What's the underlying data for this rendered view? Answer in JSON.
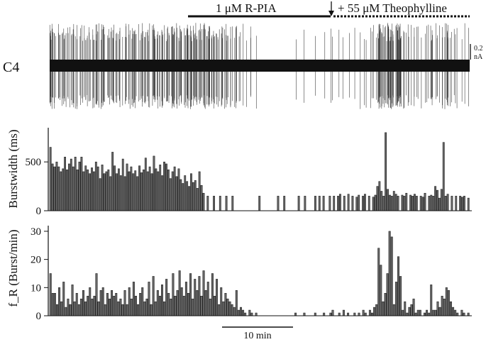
{
  "figure": {
    "trace_label": "C4",
    "drug1_label": "1 μM R-PIA",
    "drug2_label": "+ 55 μM Theophylline",
    "amp_scale_value": "0.2",
    "amp_scale_unit": "nA",
    "time_scale_label": "10 min",
    "colors": {
      "ink": "#111111",
      "bar_fill": "#666666",
      "trace": "#111111"
    }
  },
  "chart_data": [
    {
      "type": "bar",
      "ylabel": "Burstwidth (ms)",
      "yticks": [
        "0",
        "500"
      ],
      "ylim": [
        0,
        850
      ],
      "values": [
        650,
        480,
        450,
        500,
        450,
        400,
        430,
        550,
        420,
        480,
        530,
        450,
        550,
        420,
        500,
        550,
        400,
        460,
        420,
        380,
        440,
        400,
        500,
        450,
        330,
        470,
        380,
        400,
        420,
        350,
        600,
        460,
        380,
        430,
        360,
        530,
        350,
        480,
        400,
        450,
        380,
        410,
        350,
        460,
        390,
        420,
        540,
        400,
        450,
        380,
        560,
        430,
        400,
        470,
        360,
        500,
        480,
        420,
        330,
        400,
        450,
        350,
        430,
        320,
        280,
        360,
        300,
        250,
        380,
        290,
        310,
        230,
        400,
        260,
        180,
        0,
        150,
        0,
        0,
        150,
        0,
        0,
        150,
        0,
        0,
        150,
        0,
        0,
        150,
        0,
        0,
        0,
        0,
        0,
        0,
        0,
        0,
        0,
        0,
        0,
        0,
        150,
        0,
        0,
        0,
        0,
        0,
        0,
        0,
        0,
        150,
        0,
        0,
        150,
        0,
        0,
        0,
        0,
        0,
        0,
        150,
        0,
        0,
        150,
        0,
        0,
        0,
        0,
        150,
        0,
        150,
        0,
        150,
        0,
        0,
        150,
        0,
        150,
        0,
        150,
        170,
        0,
        150,
        0,
        170,
        0,
        150,
        0,
        140,
        160,
        0,
        150,
        170,
        0,
        150,
        0,
        140,
        160,
        250,
        300,
        200,
        150,
        800,
        220,
        160,
        150,
        200,
        170,
        150,
        0,
        160,
        150,
        180,
        0,
        160,
        150,
        170,
        150,
        0,
        150,
        140,
        180,
        0,
        150,
        160,
        150,
        250,
        210,
        130,
        220,
        700,
        150,
        170,
        0,
        150,
        0,
        150,
        0,
        150,
        140,
        150,
        0,
        130
      ]
    },
    {
      "type": "bar",
      "ylabel": "f_R (Burst/min)",
      "yticks": [
        "0",
        "10",
        "20",
        "30"
      ],
      "ylim": [
        0,
        32
      ],
      "values": [
        15,
        8,
        8,
        4,
        10,
        5,
        12,
        3,
        6,
        4,
        11,
        5,
        8,
        4,
        6,
        9,
        5,
        7,
        10,
        6,
        7,
        15,
        5,
        9,
        10,
        4,
        8,
        6,
        9,
        7,
        8,
        5,
        6,
        4,
        9,
        4,
        10,
        6,
        12,
        7,
        4,
        8,
        10,
        5,
        6,
        12,
        4,
        14,
        5,
        9,
        7,
        11,
        5,
        13,
        8,
        6,
        15,
        7,
        9,
        16,
        10,
        7,
        12,
        8,
        15,
        6,
        13,
        9,
        14,
        7,
        16,
        9,
        12,
        6,
        15,
        7,
        13,
        4,
        10,
        5,
        8,
        6,
        5,
        4,
        3,
        9,
        2,
        3,
        2,
        1,
        0,
        2,
        1,
        0,
        1,
        0,
        0,
        0,
        0,
        0,
        0,
        0,
        0,
        0,
        0,
        0,
        0,
        0,
        0,
        0,
        0,
        0,
        1,
        0,
        0,
        0,
        1,
        0,
        0,
        0,
        0,
        1,
        0,
        0,
        0,
        1,
        0,
        0,
        1,
        2,
        0,
        0,
        1,
        0,
        2,
        0,
        1,
        0,
        0,
        1,
        0,
        1,
        0,
        2,
        1,
        0,
        2,
        1,
        3,
        4,
        24,
        18,
        5,
        8,
        15,
        30,
        28,
        4,
        12,
        21,
        14,
        2,
        5,
        1,
        3,
        4,
        6,
        1,
        2,
        2,
        0,
        1,
        2,
        1,
        11,
        2,
        2,
        5,
        3,
        7,
        6,
        10,
        9,
        5,
        3,
        2,
        1,
        0,
        2,
        1,
        0,
        1
      ]
    }
  ]
}
